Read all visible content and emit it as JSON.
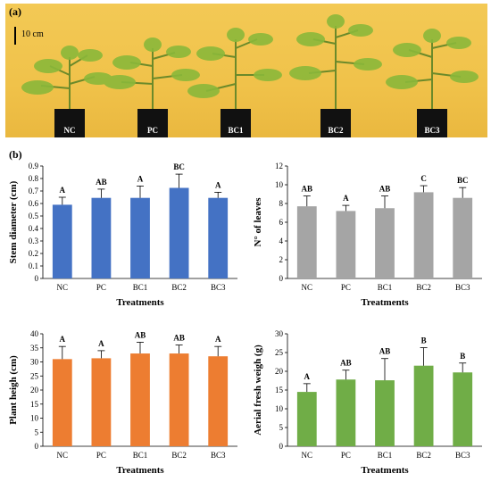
{
  "panel_a": {
    "label": "(a)",
    "scale": "10 cm",
    "pots": [
      "NC",
      "PC",
      "BC1",
      "BC2",
      "BC3"
    ]
  },
  "panel_b": {
    "label": "(b)"
  },
  "chart_data": [
    {
      "type": "bar",
      "categories": [
        "NC",
        "PC",
        "BC1",
        "BC2",
        "BC3"
      ],
      "values": [
        0.59,
        0.645,
        0.645,
        0.725,
        0.645
      ],
      "errors": [
        0.06,
        0.07,
        0.095,
        0.11,
        0.045
      ],
      "letters": [
        "A",
        "AB",
        "A",
        "BC",
        "A"
      ],
      "ylabel": "Stem diameter (cm)",
      "xlabel": "Treatments",
      "ylim": [
        0,
        0.9
      ],
      "yticks": [
        "0",
        "0.1",
        "0.2",
        "0.3",
        "0.4",
        "0.5",
        "0.6",
        "0.7",
        "0.8",
        "0.9"
      ],
      "ytick_values": [
        0,
        0.1,
        0.2,
        0.3,
        0.4,
        0.5,
        0.6,
        0.7,
        0.8,
        0.9
      ],
      "color": "#4472c4"
    },
    {
      "type": "bar",
      "categories": [
        "NC",
        "PC",
        "BC1",
        "BC2",
        "BC3"
      ],
      "values": [
        7.7,
        7.2,
        7.5,
        9.2,
        8.6
      ],
      "errors": [
        1.1,
        0.6,
        1.3,
        0.7,
        1.1
      ],
      "letters": [
        "AB",
        "A",
        "AB",
        "C",
        "BC"
      ],
      "ylabel": "N° of leaves",
      "xlabel": "Treatments",
      "ylim": [
        0,
        12
      ],
      "yticks": [
        "0",
        "2",
        "4",
        "6",
        "8",
        "10",
        "12"
      ],
      "ytick_values": [
        0,
        2,
        4,
        6,
        8,
        10,
        12
      ],
      "color": "#a5a5a5"
    },
    {
      "type": "bar",
      "categories": [
        "NC",
        "PC",
        "BC1",
        "BC2",
        "BC3"
      ],
      "values": [
        31,
        31.3,
        33,
        33,
        32
      ],
      "errors": [
        4.5,
        2.7,
        4,
        3,
        3.5
      ],
      "letters": [
        "A",
        "A",
        "AB",
        "AB",
        "A"
      ],
      "ylabel": "Plant heigh (cm)",
      "xlabel": "Treatments",
      "ylim": [
        0,
        40
      ],
      "yticks": [
        "0",
        "5",
        "10",
        "15",
        "20",
        "25",
        "30",
        "35",
        "40"
      ],
      "ytick_values": [
        0,
        5,
        10,
        15,
        20,
        25,
        30,
        35,
        40
      ],
      "color": "#ed7d31"
    },
    {
      "type": "bar",
      "categories": [
        "NC",
        "PC",
        "BC1",
        "BC2",
        "BC3"
      ],
      "values": [
        14.5,
        17.8,
        17.6,
        21.5,
        19.7
      ],
      "errors": [
        2.2,
        2.5,
        5.8,
        4.8,
        2.5
      ],
      "letters": [
        "A",
        "AB",
        "AB",
        "B",
        "B"
      ],
      "ylabel": "Aerial fresh weigh (g)",
      "xlabel": "Treatments",
      "ylim": [
        0,
        30
      ],
      "yticks": [
        "0",
        "5",
        "10",
        "15",
        "20",
        "25",
        "30"
      ],
      "ytick_values": [
        0,
        5,
        10,
        15,
        20,
        25,
        30
      ],
      "color": "#70ad47"
    }
  ]
}
